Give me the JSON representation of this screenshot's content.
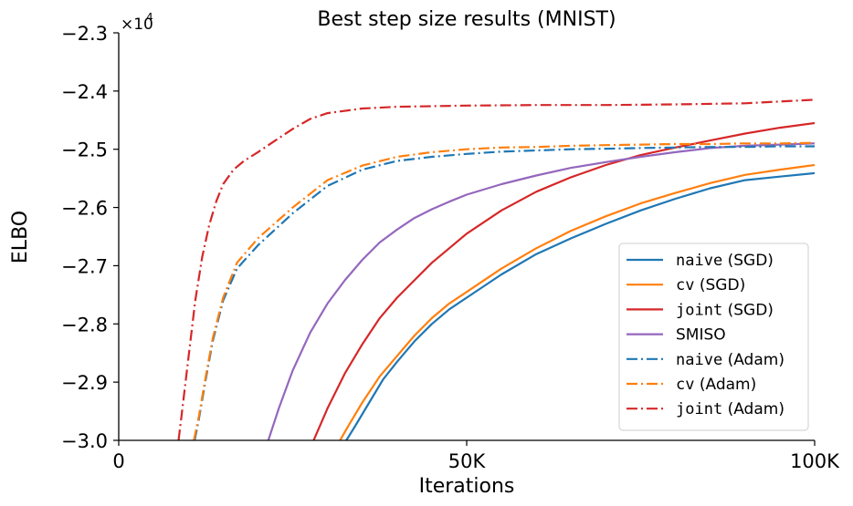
{
  "chart_data": {
    "type": "line",
    "title": "Best step size results (MNIST)",
    "xlabel": "Iterations",
    "ylabel": "ELBO",
    "y_multiplier": "×10",
    "y_multiplier_exp": "4",
    "xlim": [
      0,
      100000
    ],
    "ylim": [
      -3.0,
      -2.3
    ],
    "xticks": [
      {
        "value": 0,
        "label": "0"
      },
      {
        "value": 50000,
        "label": "50K"
      },
      {
        "value": 100000,
        "label": "100K"
      }
    ],
    "yticks": [
      {
        "value": -2.3,
        "label": "−2.3"
      },
      {
        "value": -2.4,
        "label": "−2.4"
      },
      {
        "value": -2.5,
        "label": "−2.5"
      },
      {
        "value": -2.6,
        "label": "−2.6"
      },
      {
        "value": -2.7,
        "label": "−2.7"
      },
      {
        "value": -2.8,
        "label": "−2.8"
      },
      {
        "value": -2.9,
        "label": "−2.9"
      },
      {
        "value": -3.0,
        "label": "−3.0"
      }
    ],
    "grid": false,
    "legend_position": "lower-right",
    "series": [
      {
        "name": "naive (SGD)",
        "name_code": "naive",
        "name_rest": " (SGD)",
        "color": "#1f77b4",
        "style": "solid",
        "x": [
          32700,
          34000,
          36000,
          38000,
          40000,
          42500,
          45000,
          47500,
          50000,
          55000,
          60000,
          65000,
          70000,
          75000,
          80000,
          85000,
          90000,
          95000,
          100000
        ],
        "y": [
          -3.0,
          -2.975,
          -2.935,
          -2.895,
          -2.865,
          -2.83,
          -2.8,
          -2.775,
          -2.755,
          -2.715,
          -2.68,
          -2.653,
          -2.628,
          -2.605,
          -2.585,
          -2.567,
          -2.553,
          -2.547,
          -2.541
        ]
      },
      {
        "name": "cv (SGD)",
        "name_code": "cv",
        "name_rest": " (SGD)",
        "color": "#ff7f0e",
        "style": "solid",
        "x": [
          31800,
          33000,
          35000,
          37500,
          40000,
          42500,
          45000,
          47500,
          50000,
          55000,
          60000,
          65000,
          70000,
          75000,
          80000,
          85000,
          90000,
          95000,
          100000
        ],
        "y": [
          -3.0,
          -2.975,
          -2.935,
          -2.89,
          -2.855,
          -2.82,
          -2.79,
          -2.765,
          -2.745,
          -2.705,
          -2.67,
          -2.64,
          -2.615,
          -2.593,
          -2.575,
          -2.558,
          -2.544,
          -2.535,
          -2.527
        ]
      },
      {
        "name": "joint (SGD)",
        "name_code": "joint",
        "name_rest": " (SGD)",
        "color": "#d62728",
        "style": "solid",
        "x": [
          28000,
          30000,
          32500,
          35000,
          37500,
          40000,
          42500,
          45000,
          47500,
          50000,
          55000,
          60000,
          65000,
          70000,
          75000,
          80000,
          85000,
          90000,
          95000,
          100000
        ],
        "y": [
          -3.0,
          -2.945,
          -2.885,
          -2.835,
          -2.79,
          -2.755,
          -2.725,
          -2.695,
          -2.67,
          -2.645,
          -2.605,
          -2.573,
          -2.548,
          -2.527,
          -2.51,
          -2.497,
          -2.485,
          -2.473,
          -2.463,
          -2.455
        ]
      },
      {
        "name": "SMISO",
        "name_code": "",
        "name_rest": "SMISO",
        "color": "#9467bd",
        "style": "solid",
        "x": [
          21500,
          23000,
          25000,
          27500,
          30000,
          32500,
          35000,
          37500,
          40000,
          42500,
          45000,
          47500,
          50000,
          55000,
          60000,
          65000,
          70000,
          75000,
          80000,
          85000,
          90000,
          95000,
          100000
        ],
        "y": [
          -3.0,
          -2.945,
          -2.88,
          -2.815,
          -2.765,
          -2.725,
          -2.69,
          -2.66,
          -2.638,
          -2.618,
          -2.603,
          -2.59,
          -2.578,
          -2.56,
          -2.545,
          -2.532,
          -2.522,
          -2.513,
          -2.505,
          -2.498,
          -2.494,
          -2.492,
          -2.49
        ]
      },
      {
        "name": "naive (Adam)",
        "name_code": "naive",
        "name_rest": " (Adam)",
        "color": "#1f77b4",
        "style": "dashdot",
        "x": [
          10900,
          11500,
          12500,
          13500,
          15000,
          17000,
          20000,
          25000,
          30000,
          35000,
          40000,
          45000,
          50000,
          55000,
          60000,
          65000,
          70000,
          75000,
          80000,
          85000,
          90000,
          95000,
          100000
        ],
        "y": [
          -3.0,
          -2.965,
          -2.895,
          -2.83,
          -2.76,
          -2.705,
          -2.665,
          -2.61,
          -2.563,
          -2.535,
          -2.52,
          -2.513,
          -2.508,
          -2.504,
          -2.502,
          -2.5,
          -2.499,
          -2.498,
          -2.497,
          -2.496,
          -2.496,
          -2.495,
          -2.495
        ]
      },
      {
        "name": "cv (Adam)",
        "name_code": "cv",
        "name_rest": " (Adam)",
        "color": "#ff7f0e",
        "style": "dashdot",
        "x": [
          10800,
          11500,
          12500,
          13500,
          15000,
          17000,
          20000,
          25000,
          30000,
          35000,
          40000,
          45000,
          50000,
          55000,
          60000,
          65000,
          70000,
          75000,
          80000,
          85000,
          90000,
          95000,
          100000
        ],
        "y": [
          -3.0,
          -2.96,
          -2.89,
          -2.825,
          -2.755,
          -2.695,
          -2.653,
          -2.6,
          -2.553,
          -2.528,
          -2.513,
          -2.505,
          -2.5,
          -2.497,
          -2.496,
          -2.494,
          -2.493,
          -2.492,
          -2.491,
          -2.491,
          -2.49,
          -2.49,
          -2.489
        ]
      },
      {
        "name": "joint (Adam)",
        "name_code": "joint",
        "name_rest": " (Adam)",
        "color": "#d62728",
        "style": "dashdot",
        "x": [
          8600,
          9000,
          10000,
          11000,
          12000,
          13000,
          14000,
          15000,
          16500,
          18000,
          20000,
          22500,
          25000,
          27500,
          30000,
          35000,
          40000,
          50000,
          60000,
          70000,
          80000,
          90000,
          100000
        ],
        "y": [
          -3.0,
          -2.96,
          -2.86,
          -2.76,
          -2.685,
          -2.63,
          -2.59,
          -2.56,
          -2.535,
          -2.52,
          -2.505,
          -2.485,
          -2.465,
          -2.448,
          -2.438,
          -2.43,
          -2.427,
          -2.425,
          -2.424,
          -2.424,
          -2.423,
          -2.421,
          -2.415
        ]
      }
    ]
  }
}
